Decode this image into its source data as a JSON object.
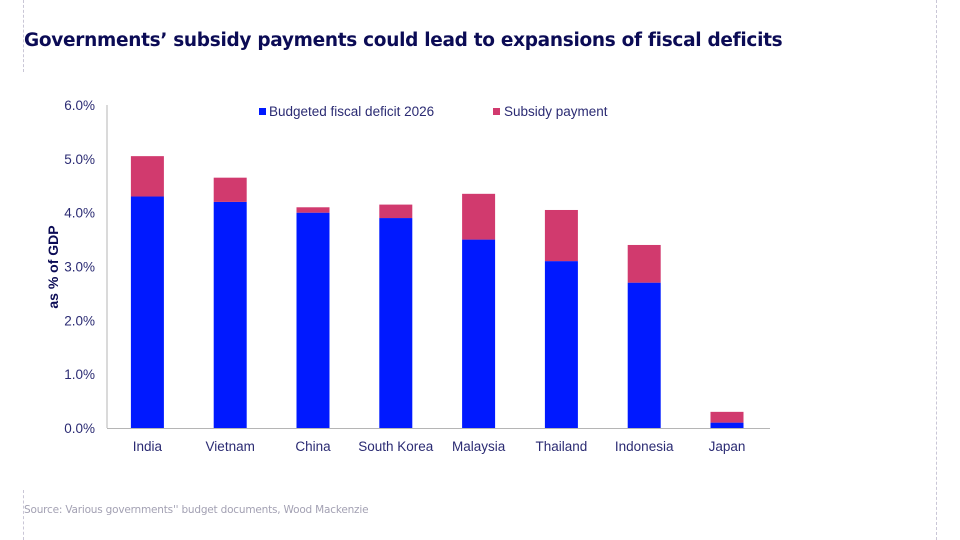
{
  "title": "Governments’ subsidy payments could lead to expansions of fiscal deficits",
  "source": "Source: Various governments'' budget documents, Wood Mackenzie",
  "colors": {
    "title": "#0b0b55",
    "axis_text": "#2b2b73",
    "deficit": "#0019ff",
    "subsidy": "#d13a6e",
    "source": "#a3a1b3"
  },
  "chart_data": {
    "type": "bar",
    "stacked": true,
    "title": "Governments’ subsidy payments could lead to expansions of fiscal deficits",
    "xlabel": "",
    "ylabel": "as % of GDP",
    "ylim": [
      0,
      6
    ],
    "yticks": [
      "0.0%",
      "1.0%",
      "2.0%",
      "3.0%",
      "4.0%",
      "5.0%",
      "6.0%"
    ],
    "grid": false,
    "legend_position": "top-center",
    "categories": [
      "India",
      "Vietnam",
      "China",
      "South Korea",
      "Malaysia",
      "Thailand",
      "Indonesia",
      "Japan"
    ],
    "series": [
      {
        "name": "Budgeted fiscal deficit 2026",
        "color": "#0019ff",
        "values": [
          4.3,
          4.2,
          4.0,
          3.9,
          3.5,
          3.1,
          2.7,
          0.1
        ]
      },
      {
        "name": "Subsidy payment",
        "color": "#d13a6e",
        "values": [
          0.75,
          0.45,
          0.1,
          0.25,
          0.85,
          0.95,
          0.7,
          0.2
        ]
      }
    ]
  }
}
